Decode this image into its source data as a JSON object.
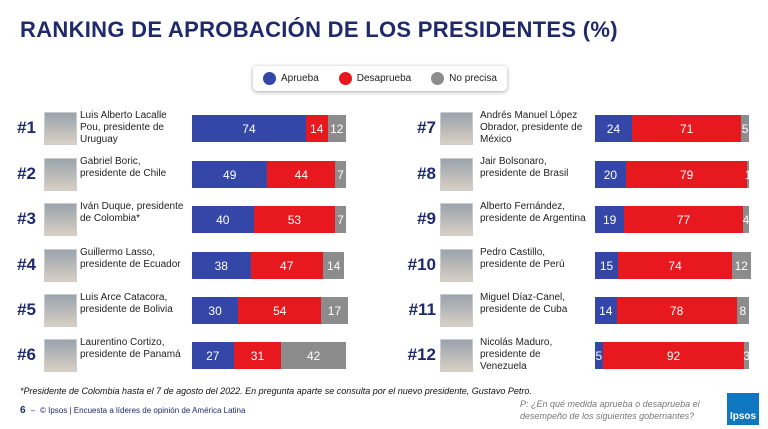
{
  "chart_data": {
    "type": "bar",
    "orientation": "horizontal",
    "stacked": true,
    "title": "RANKING DE APROBACIÓN DE LOS PRESIDENTES (%)",
    "ranks": [
      "#1",
      "#2",
      "#3",
      "#4",
      "#5",
      "#6",
      "#7",
      "#8",
      "#9",
      "#10",
      "#11",
      "#12"
    ],
    "categories": [
      "Luis Alberto Lacalle Pou, presidente de Uruguay",
      "Gabriel Boric, presidente de Chile",
      "Iván Duque, presidente de Colombia*",
      "Guillermo Lasso, presidente de Ecuador",
      "Luis Arce Catacora, presidente de Bolivia",
      "Laurentino Cortizo, presidente de Panamá",
      "Andrés Manuel López Obrador, presidente de México",
      "Jair Bolsonaro, presidente de Brasil",
      "Alberto Fernández, presidente de Argentina",
      "Pedro Castillo, presidente de Perú",
      "Miguel Díaz-Canel, presidente de Cuba",
      "Nicolás Maduro, presidente de Venezuela"
    ],
    "series": [
      {
        "name": "Aprueba",
        "color": "#3446a8",
        "values": [
          74,
          49,
          40,
          38,
          30,
          27,
          24,
          20,
          19,
          15,
          14,
          5
        ]
      },
      {
        "name": "Desaprueba",
        "color": "#e8191e",
        "values": [
          14,
          44,
          53,
          47,
          54,
          31,
          71,
          79,
          77,
          74,
          78,
          92
        ]
      },
      {
        "name": "No precisa",
        "color": "#8c8c8c",
        "values": [
          12,
          7,
          7,
          14,
          17,
          42,
          5,
          1,
          4,
          12,
          8,
          3
        ]
      }
    ]
  },
  "footnote": "*Presidente de Colombia hasta el 7 de agosto del 2022. En pregunta aparte se consulta por el nuevo presidente, Gustavo Petro.",
  "footer": {
    "page": "6",
    "separator": "–",
    "source": "© Ipsos | Encuesta a líderes de opinión de América Latina"
  },
  "question": "P: ¿En qué medida aprueba o desaprueba el desempeño de los siguientes gobernantes?",
  "logo": "Ipsos"
}
